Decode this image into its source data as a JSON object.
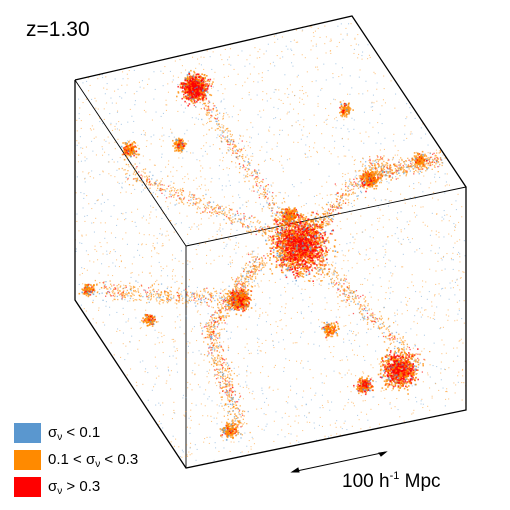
{
  "title": {
    "redshift": "z=1.30"
  },
  "legend": [
    {
      "symbol": "σ",
      "sub": "ν",
      "prefix": "",
      "suffix": " < 0.1",
      "color": "#5a97cf"
    },
    {
      "symbol": "σ",
      "sub": "ν",
      "prefix": "0.1 < ",
      "suffix": " < 0.3",
      "color": "#ff8a00"
    },
    {
      "symbol": "σ",
      "sub": "ν",
      "prefix": "",
      "suffix": " > 0.3",
      "color": "#ff0000"
    }
  ],
  "scale_bar": {
    "number": "100",
    "unit_base": " h",
    "unit_exp": "-1",
    "unit_suffix": " Mpc"
  },
  "colors": {
    "blue": "#5a97cf",
    "orange": "#ff8a00",
    "red": "#ff0000",
    "edge": "#000000"
  }
}
